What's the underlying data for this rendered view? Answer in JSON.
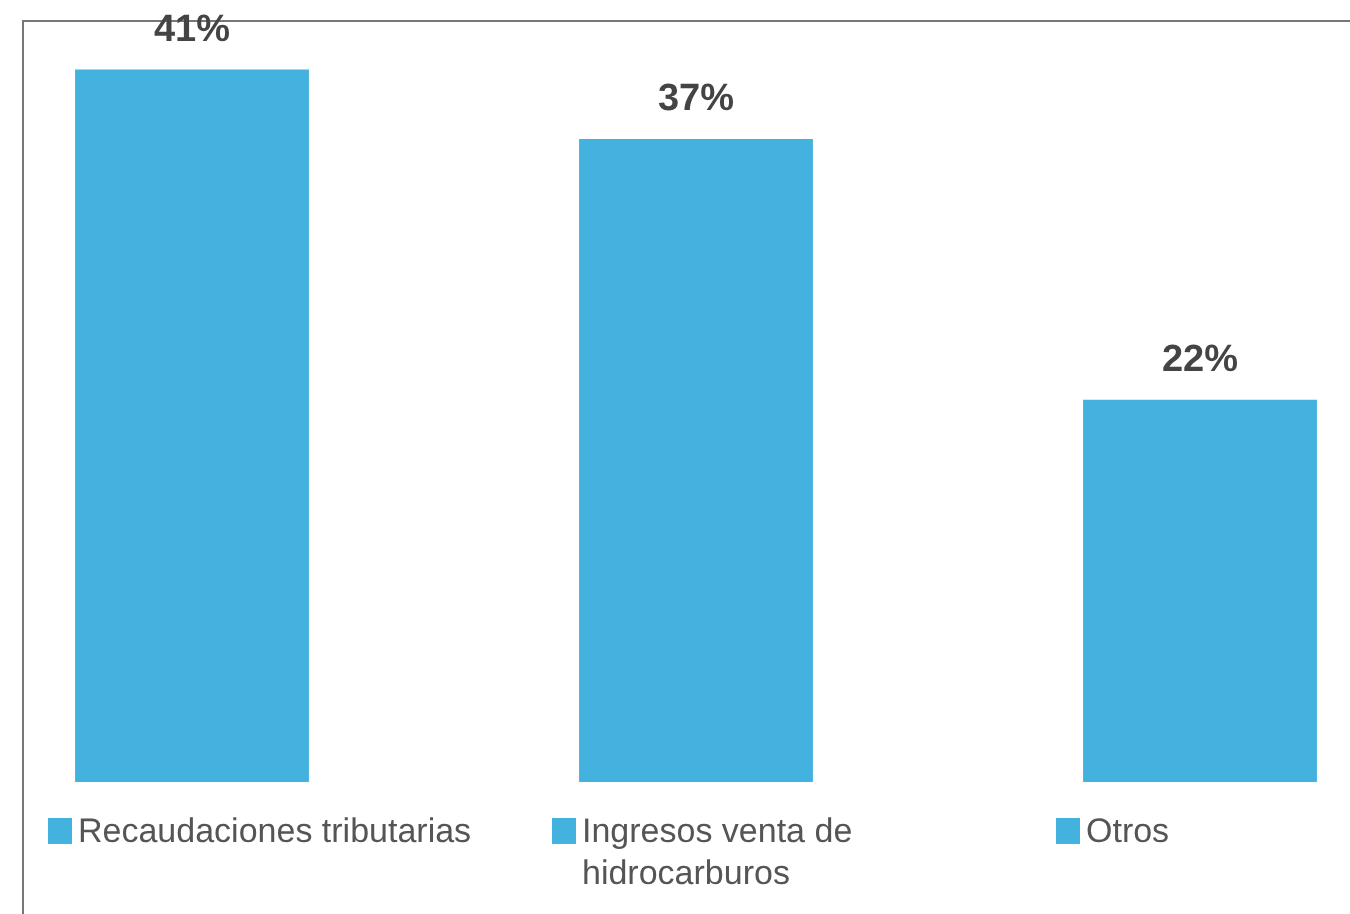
{
  "chart_data": {
    "type": "bar",
    "categories": [
      "Recaudaciones tributarias",
      "Ingresos venta de hidrocarburos",
      "Otros"
    ],
    "values": [
      41,
      37,
      22
    ],
    "value_labels": [
      "41%",
      "37%",
      "22%"
    ],
    "color": "#43b2df",
    "tick_labels": "x",
    "grid": false
  }
}
